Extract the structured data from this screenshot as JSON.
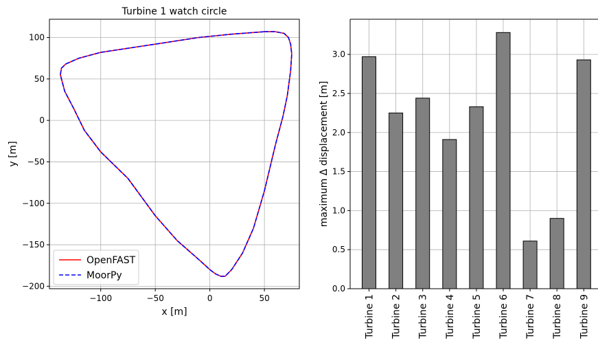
{
  "chart_data": [
    {
      "type": "line",
      "title": "Turbine 1 watch circle",
      "xlabel": "x [m]",
      "ylabel": "y [m]",
      "xlim": [
        -147,
        82
      ],
      "ylim": [
        -203,
        122
      ],
      "xticks": [
        -100,
        -50,
        0,
        50
      ],
      "yticks": [
        -200,
        -150,
        -100,
        -50,
        0,
        50,
        100
      ],
      "xtick_labels": [
        "−100",
        "−50",
        "0",
        "50"
      ],
      "ytick_labels": [
        "−200",
        "−150",
        "−100",
        "−50",
        "0",
        "50",
        "100"
      ],
      "grid": true,
      "legend": "lower-left",
      "series": [
        {
          "name": "OpenFAST",
          "color": "#ff0000",
          "style": "solid",
          "x": [
            50,
            60,
            68,
            72,
            74,
            75,
            74,
            71,
            67,
            60,
            50,
            40,
            30,
            20,
            14,
            10,
            5,
            0,
            -10,
            -30,
            -50,
            -75,
            -100,
            -115,
            -125,
            -133,
            -137,
            -136,
            -132,
            -120,
            -100,
            -70,
            -40,
            -10,
            20,
            40,
            50
          ],
          "y": [
            107,
            107,
            105,
            100,
            92,
            80,
            60,
            30,
            5,
            -30,
            -85,
            -130,
            -160,
            -180,
            -188,
            -188,
            -185,
            -180,
            -168,
            -145,
            -115,
            -70,
            -38,
            -12,
            15,
            35,
            55,
            63,
            68,
            75,
            82,
            88,
            94,
            100,
            104,
            106,
            107
          ]
        },
        {
          "name": "MoorPy",
          "color": "#0000ff",
          "style": "dashed",
          "x": [
            50,
            60,
            68,
            72,
            74,
            75,
            74,
            71,
            67,
            60,
            50,
            40,
            30,
            20,
            14,
            10,
            5,
            0,
            -10,
            -30,
            -50,
            -75,
            -100,
            -115,
            -125,
            -133,
            -137,
            -136,
            -132,
            -120,
            -100,
            -70,
            -40,
            -10,
            20,
            40,
            50
          ],
          "y": [
            107,
            107,
            105,
            100,
            92,
            80,
            60,
            30,
            5,
            -30,
            -85,
            -130,
            -160,
            -180,
            -188,
            -188,
            -185,
            -180,
            -168,
            -145,
            -115,
            -70,
            -38,
            -12,
            15,
            35,
            55,
            63,
            68,
            75,
            82,
            88,
            94,
            100,
            104,
            106,
            107
          ]
        }
      ]
    },
    {
      "type": "bar",
      "categories": [
        "Turbine 1",
        "Turbine 2",
        "Turbine 3",
        "Turbine 4",
        "Turbine 5",
        "Turbine 6",
        "Turbine 7",
        "Turbine 8",
        "Turbine 9"
      ],
      "values": [
        2.97,
        2.25,
        2.44,
        1.91,
        2.33,
        3.28,
        0.61,
        0.9,
        2.93
      ],
      "xlabel": "",
      "ylabel": "maximum Δ displacement [m]",
      "ylim": [
        0,
        3.45
      ],
      "yticks": [
        0.0,
        0.5,
        1.0,
        1.5,
        2.0,
        2.5,
        3.0
      ],
      "ytick_labels": [
        "0.0",
        "0.5",
        "1.0",
        "1.5",
        "2.0",
        "2.5",
        "3.0"
      ],
      "bar_color": "#808080",
      "edge_color": "#000000",
      "grid": true
    }
  ]
}
